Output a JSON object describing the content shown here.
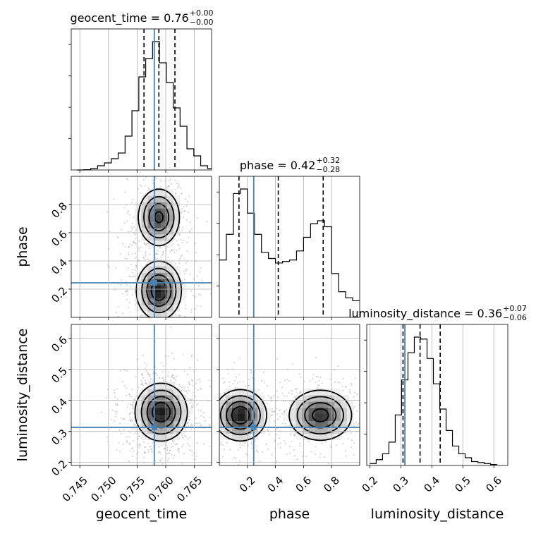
{
  "chart_data": {
    "type": "corner",
    "parameters": [
      "geocent_time",
      "phase",
      "luminosity_distance"
    ],
    "titles": [
      {
        "param": "geocent_time",
        "text": "geocent_time = 0.76",
        "sup": "+0.00",
        "sub": "−0.00"
      },
      {
        "param": "phase",
        "text": "phase = 0.42",
        "sup": "+0.32",
        "sub": "−0.28"
      },
      {
        "param": "luminosity_distance",
        "text": "luminosity_distance = 0.36",
        "sup": "+0.07",
        "sub": "−0.06"
      }
    ],
    "axes": {
      "geocent_time": {
        "range": [
          0.7435,
          0.768
        ],
        "ticks": [
          0.745,
          0.75,
          0.755,
          0.76,
          0.765
        ],
        "tick_labels": [
          "0.745",
          "0.750",
          "0.755",
          "0.760",
          "0.765"
        ]
      },
      "phase": {
        "range": [
          0.0,
          1.0
        ],
        "ticks": [
          0.2,
          0.4,
          0.6,
          0.8
        ],
        "tick_labels": [
          "0.2",
          "0.4",
          "0.6",
          "0.8"
        ]
      },
      "luminosity_distance": {
        "range": [
          0.19,
          0.645
        ],
        "ticks": [
          0.2,
          0.3,
          0.4,
          0.5,
          0.6
        ],
        "tick_labels": [
          "0.2",
          "0.3",
          "0.4",
          "0.5",
          "0.6"
        ]
      }
    },
    "truths": {
      "geocent_time": 0.758,
      "phase": 0.245,
      "luminosity_distance": 0.313
    },
    "quantiles": {
      "geocent_time": [
        0.7562,
        0.7588,
        0.7616
      ],
      "phase": [
        0.14,
        0.42,
        0.74
      ],
      "luminosity_distance": [
        0.307,
        0.362,
        0.427
      ]
    },
    "histograms": {
      "geocent_time": {
        "edges": [
          0.7445,
          0.7457,
          0.7469,
          0.7481,
          0.7493,
          0.7505,
          0.7517,
          0.7529,
          0.7541,
          0.7553,
          0.7565,
          0.7577,
          0.7589,
          0.7601,
          0.7613,
          0.7625,
          0.7637,
          0.7649,
          0.7661,
          0.7673,
          0.7685
        ],
        "counts": [
          0.0,
          0.002,
          0.01,
          0.03,
          0.05,
          0.08,
          0.12,
          0.24,
          0.42,
          0.66,
          0.79,
          0.91,
          0.76,
          0.62,
          0.44,
          0.31,
          0.15,
          0.1,
          0.03,
          0.01
        ]
      },
      "phase": {
        "edges": [
          0.0,
          0.05,
          0.1,
          0.15,
          0.2,
          0.25,
          0.3,
          0.35,
          0.4,
          0.45,
          0.5,
          0.55,
          0.6,
          0.65,
          0.7,
          0.75,
          0.8,
          0.85,
          0.9,
          0.95,
          1.0
        ],
        "counts": [
          0.38,
          0.55,
          0.82,
          0.85,
          0.69,
          0.55,
          0.43,
          0.39,
          0.36,
          0.37,
          0.38,
          0.44,
          0.53,
          0.62,
          0.64,
          0.6,
          0.29,
          0.17,
          0.13,
          0.11
        ]
      },
      "luminosity_distance": {
        "edges": [
          0.2,
          0.2205,
          0.241,
          0.2615,
          0.282,
          0.3025,
          0.323,
          0.3435,
          0.364,
          0.3845,
          0.405,
          0.4255,
          0.446,
          0.4665,
          0.487,
          0.5075,
          0.528,
          0.5485,
          0.569,
          0.5895,
          0.61
        ],
        "counts": [
          0.01,
          0.03,
          0.06,
          0.12,
          0.26,
          0.44,
          0.58,
          0.66,
          0.65,
          0.55,
          0.42,
          0.29,
          0.18,
          0.1,
          0.06,
          0.04,
          0.02,
          0.015,
          0.01,
          0.005
        ]
      }
    },
    "density_modes": {
      "phase_vs_geocent_time": [
        {
          "x": 0.7588,
          "y": 0.71,
          "sx": 0.0018,
          "sy": 0.1,
          "w": 0.85
        },
        {
          "x": 0.7588,
          "y": 0.19,
          "sx": 0.0019,
          "sy": 0.1,
          "w": 1.0
        }
      ],
      "luminosity_distance_vs_geocent_time": [
        {
          "x": 0.7592,
          "y": 0.362,
          "sx": 0.0022,
          "sy": 0.045,
          "w": 1.0
        }
      ],
      "luminosity_distance_vs_phase": [
        {
          "x": 0.15,
          "y": 0.352,
          "sx": 0.09,
          "sy": 0.04,
          "w": 1.0
        },
        {
          "x": 0.72,
          "y": 0.352,
          "sx": 0.11,
          "sy": 0.04,
          "w": 0.9
        }
      ]
    },
    "colors": {
      "truth": "#4682b4",
      "hist": "#000000",
      "grid": "#b0b0b0",
      "points": "#8c8c8c"
    },
    "grid": true
  }
}
